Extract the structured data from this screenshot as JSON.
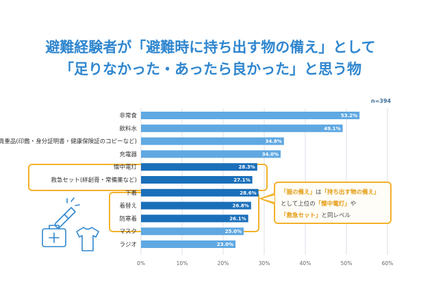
{
  "title": {
    "line1": "避難経験者が「避難時に持ち出す物の備え」として",
    "line2": "「足りなかった・あったら良かった」と思う物"
  },
  "sample_size": "n=394",
  "chart_data": {
    "type": "bar",
    "orientation": "horizontal",
    "categories": [
      "非常食",
      "飲料水",
      "貴重品(印鑑・身分証明書・健康保険証のコピーなど)",
      "充電器",
      "懐中電灯",
      "救急セット(絆創膏・常備薬など)",
      "下着",
      "着替え",
      "防寒着",
      "マスク",
      "ラジオ"
    ],
    "values": [
      53.2,
      49.1,
      34.8,
      34.0,
      28.3,
      27.1,
      28.6,
      26.8,
      26.1,
      25.0,
      23.0
    ],
    "value_labels": [
      "53.2%",
      "49.1%",
      "34.8%",
      "34.0%",
      "28.3%",
      "27.1%",
      "28.6%",
      "26.8%",
      "26.1%",
      "25.0%",
      "23.0%"
    ],
    "highlighted": [
      false,
      false,
      false,
      false,
      true,
      true,
      true,
      true,
      true,
      false,
      false
    ],
    "x_ticks": [
      "0%",
      "10%",
      "20%",
      "30%",
      "40%",
      "50%",
      "60%"
    ],
    "xlim": [
      0,
      60
    ],
    "grid": true,
    "colors": {
      "normal": "#5fa8e2",
      "highlight": "#1a6fba",
      "grid": "#cfd8e2",
      "box": "#f2b02a"
    }
  },
  "callout": {
    "line1_hl1": "「服の備え」",
    "line1_mid": "は",
    "line1_hl2": "「持ち出す物の備え」",
    "line2_pre": "として上位の",
    "line2_hl": "「懐中電灯」",
    "line2_post": "や",
    "line3_hl": "「救急セット」",
    "line3_post": "と同レベル"
  },
  "icons": [
    "flashlight-icon",
    "first-aid-kit-icon",
    "shirt-icon"
  ]
}
